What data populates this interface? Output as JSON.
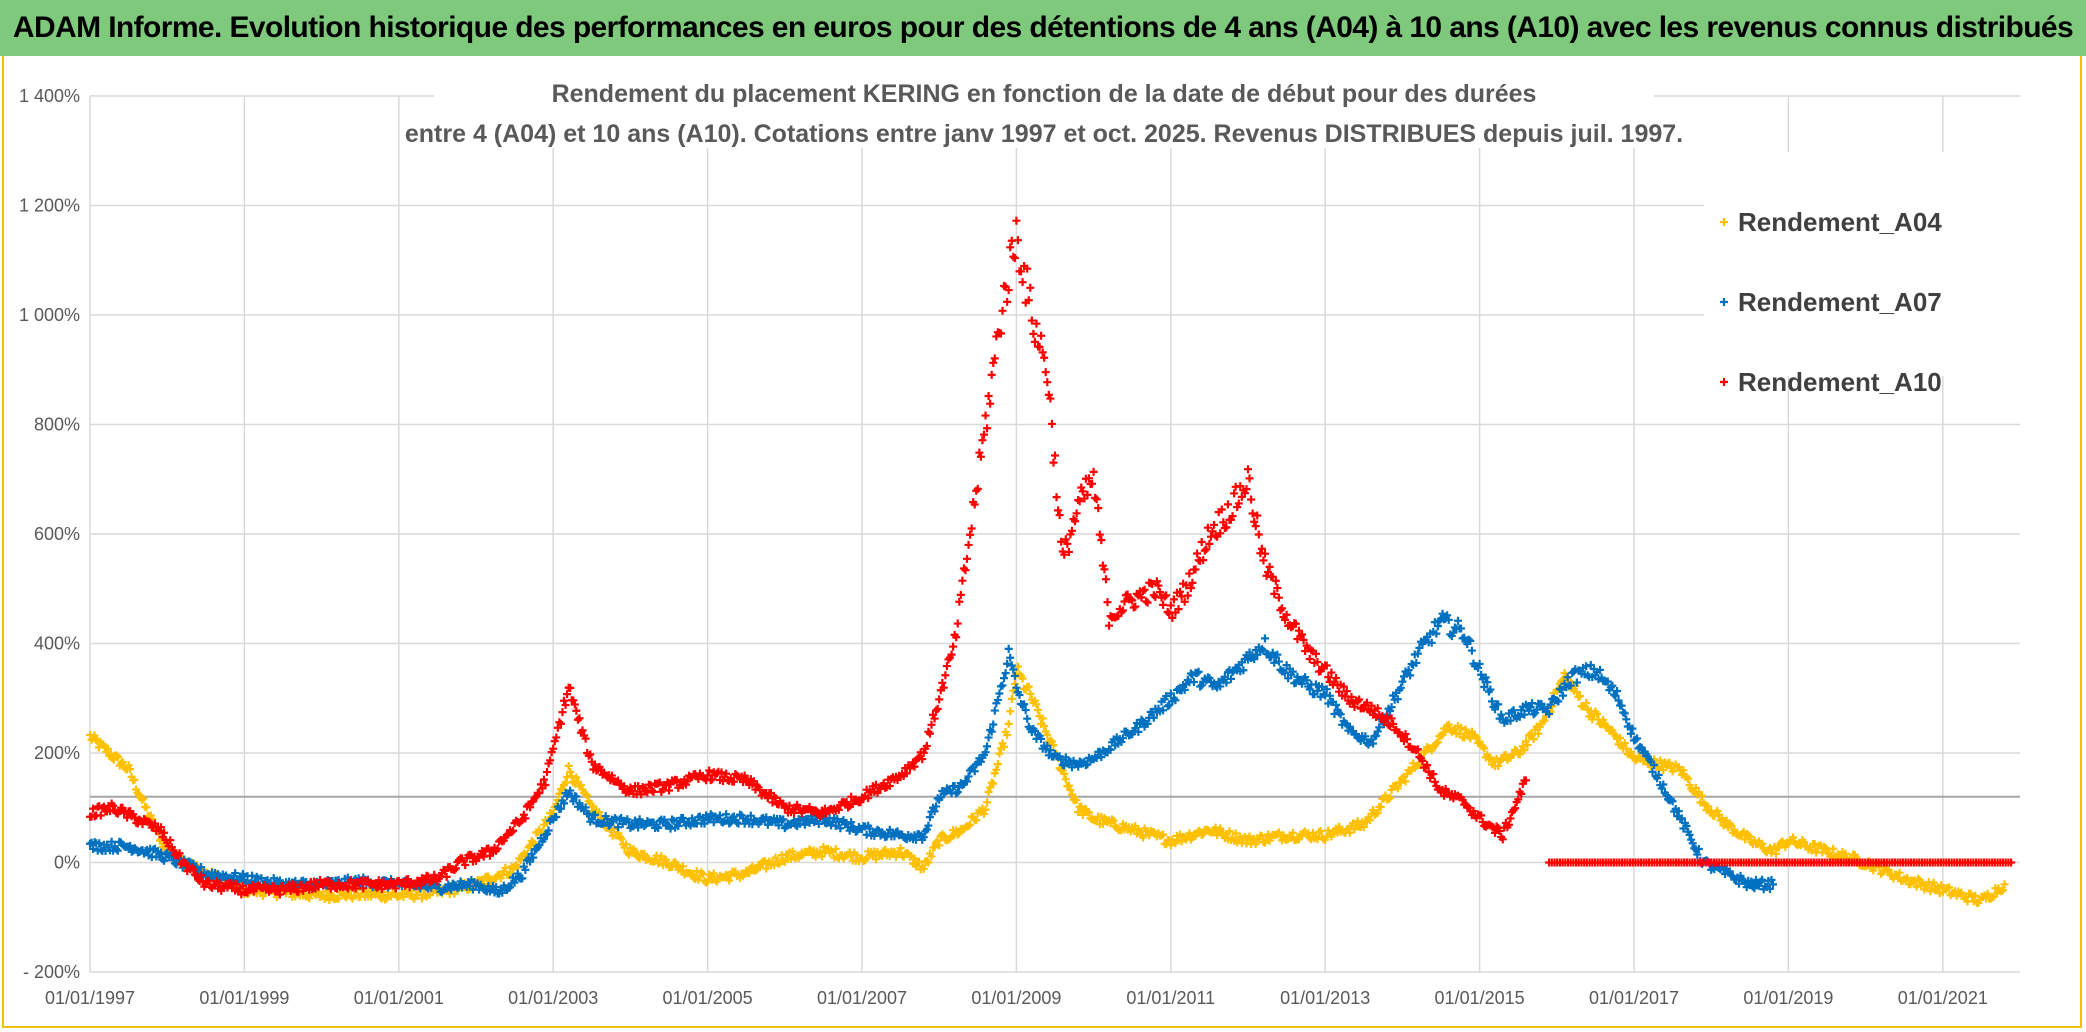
{
  "banner": {
    "title": "ADAM Informe. Evolution historique des performances en euros pour des détentions de 4 ans (A04) à 10 ans (A10) avec les revenus connus distribués"
  },
  "colors": {
    "banner_bg": "#7fc97d",
    "frame_border": "#f2c200",
    "A04": "#ffc000",
    "A07": "#0070c0",
    "A10": "#ff0000",
    "grid": "#d9d9d9",
    "text": "#595959"
  },
  "chart_data": {
    "type": "scatter",
    "title_line1": "Rendement du placement KERING en fonction de la date de début pour des durées",
    "title_line2": "entre 4 (A04) et 10 ans (A10). Cotations entre janv 1997 et oct. 2025. Revenus DISTRIBUES depuis juil. 1997.",
    "xlabel": "",
    "ylabel": "",
    "x_range": [
      1997.0,
      2022.0
    ],
    "ylim": [
      -200,
      1400
    ],
    "y_ticks": [
      -200,
      0,
      200,
      400,
      600,
      800,
      1000,
      1200,
      1400
    ],
    "y_tick_labels": [
      "- 200%",
      "0%",
      "200%",
      "400%",
      "600%",
      "800%",
      "1 000%",
      "1 200%",
      "1 400%"
    ],
    "x_ticks": [
      1997,
      1999,
      2001,
      2003,
      2005,
      2007,
      2009,
      2011,
      2013,
      2015,
      2017,
      2019,
      2021
    ],
    "x_tick_labels": [
      "01/01/1997",
      "01/01/1999",
      "01/01/2001",
      "01/01/2003",
      "01/01/2005",
      "01/01/2007",
      "01/01/2009",
      "01/01/2011",
      "01/01/2013",
      "01/01/2015",
      "01/01/2017",
      "01/01/2019",
      "01/01/2021"
    ],
    "reference_line_y": 120,
    "legend_position": "top-right",
    "series": [
      {
        "name": "Rendement_A04",
        "color": "#ffc000",
        "x": [
          1997.0,
          1997.25,
          1997.5,
          1997.75,
          1998.0,
          1998.5,
          1999.0,
          1999.5,
          2000.0,
          2000.5,
          2001.0,
          2001.5,
          2002.0,
          2002.5,
          2003.0,
          2003.2,
          2003.5,
          2003.75,
          2004.0,
          2004.5,
          2004.8,
          2005.0,
          2005.5,
          2006.0,
          2006.5,
          2007.0,
          2007.5,
          2007.8,
          2008.0,
          2008.3,
          2008.6,
          2008.9,
          2009.0,
          2009.2,
          2009.5,
          2009.8,
          2010.0,
          2010.5,
          2011.0,
          2011.5,
          2012.0,
          2012.5,
          2013.0,
          2013.5,
          2014.0,
          2014.3,
          2014.6,
          2014.9,
          2015.2,
          2015.5,
          2015.8,
          2016.1,
          2016.4,
          2016.7,
          2017.0,
          2017.3,
          2017.6,
          2017.9,
          2018.2,
          2018.5,
          2018.8,
          2019.0,
          2019.5,
          2020.0,
          2020.5,
          2021.0,
          2021.5,
          2021.8
        ],
        "y": [
          230,
          200,
          170,
          90,
          20,
          -20,
          -50,
          -55,
          -60,
          -58,
          -60,
          -55,
          -40,
          -10,
          90,
          170,
          100,
          60,
          20,
          0,
          -20,
          -30,
          -20,
          10,
          20,
          10,
          20,
          -10,
          40,
          60,
          100,
          250,
          350,
          300,
          200,
          100,
          80,
          60,
          40,
          60,
          40,
          50,
          50,
          70,
          150,
          200,
          250,
          230,
          180,
          200,
          250,
          340,
          280,
          240,
          190,
          180,
          170,
          110,
          70,
          40,
          20,
          40,
          20,
          0,
          -30,
          -50,
          -70,
          -40
        ]
      },
      {
        "name": "Rendement_A07",
        "color": "#0070c0",
        "x": [
          1997.0,
          1997.5,
          1998.0,
          1998.5,
          1999.0,
          1999.5,
          2000.0,
          2000.5,
          2001.0,
          2001.5,
          2002.0,
          2002.3,
          2002.6,
          2003.0,
          2003.2,
          2003.5,
          2004.0,
          2004.5,
          2005.0,
          2005.5,
          2006.0,
          2006.5,
          2007.0,
          2007.5,
          2007.8,
          2008.0,
          2008.3,
          2008.6,
          2008.9,
          2009.0,
          2009.2,
          2009.5,
          2009.8,
          2010.0,
          2010.3,
          2010.6,
          2011.0,
          2011.3,
          2011.6,
          2011.9,
          2012.2,
          2012.5,
          2012.8,
          2013.0,
          2013.3,
          2013.6,
          2013.9,
          2014.2,
          2014.5,
          2014.8,
          2015.0,
          2015.3,
          2015.6,
          2015.9,
          2016.2,
          2016.5,
          2016.8,
          2017.0,
          2017.3,
          2017.6,
          2017.9,
          2018.2,
          2018.5,
          2018.8
        ],
        "y": [
          30,
          30,
          10,
          -20,
          -30,
          -40,
          -40,
          -35,
          -40,
          -45,
          -40,
          -55,
          -20,
          80,
          130,
          80,
          70,
          70,
          80,
          80,
          70,
          80,
          60,
          50,
          50,
          120,
          140,
          200,
          380,
          320,
          240,
          190,
          180,
          190,
          220,
          250,
          300,
          340,
          320,
          360,
          400,
          350,
          320,
          310,
          240,
          220,
          300,
          380,
          440,
          420,
          350,
          260,
          280,
          280,
          340,
          350,
          300,
          230,
          160,
          80,
          0,
          -20,
          -40,
          -40
        ]
      },
      {
        "name": "Rendement_A10",
        "color": "#ff0000",
        "x": [
          1997.0,
          1997.3,
          1997.6,
          1997.9,
          1998.2,
          1998.5,
          1999.0,
          1999.5,
          2000.0,
          2000.5,
          2001.0,
          2001.5,
          2001.8,
          2002.2,
          2002.6,
          2002.9,
          2003.2,
          2003.5,
          2004.0,
          2004.5,
          2005.0,
          2005.5,
          2006.0,
          2006.5,
          2007.0,
          2007.5,
          2007.8,
          2008.0,
          2008.2,
          2008.4,
          2008.6,
          2008.8,
          2009.0,
          2009.2,
          2009.4,
          2009.6,
          2009.8,
          2010.0,
          2010.2,
          2010.5,
          2010.8,
          2011.0,
          2011.2,
          2011.5,
          2011.8,
          2012.0,
          2012.2,
          2012.5,
          2012.8,
          2013.0,
          2013.3,
          2013.6,
          2013.9,
          2014.2,
          2014.5,
          2014.8,
          2015.0,
          2015.3,
          2015.6
        ],
        "y": [
          90,
          100,
          80,
          60,
          0,
          -40,
          -50,
          -50,
          -40,
          -40,
          -40,
          -30,
          0,
          20,
          80,
          150,
          320,
          180,
          130,
          140,
          160,
          150,
          100,
          90,
          120,
          160,
          200,
          300,
          400,
          600,
          800,
          1000,
          1150,
          1000,
          900,
          550,
          650,
          700,
          450,
          480,
          500,
          460,
          500,
          600,
          650,
          700,
          550,
          450,
          380,
          350,
          300,
          280,
          250,
          200,
          130,
          110,
          80,
          50,
          150
        ]
      },
      {
        "name": "Rendement_A10_zero_band",
        "legend": false,
        "color": "#ff0000",
        "x_start": 2015.9,
        "x_end": 2021.9,
        "y": 0
      }
    ],
    "legend": [
      "Rendement_A04",
      "Rendement_A07",
      "Rendement_A10"
    ]
  }
}
